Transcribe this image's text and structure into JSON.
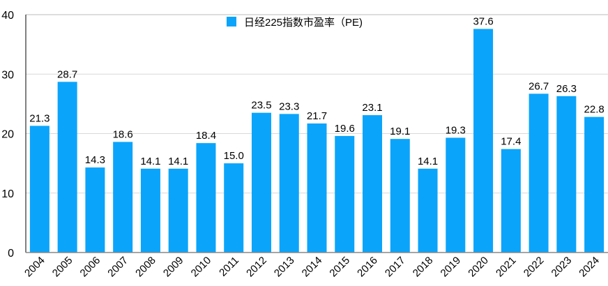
{
  "chart_data": {
    "type": "bar",
    "title": "",
    "xlabel": "",
    "ylabel": "",
    "ylim": [
      0,
      40
    ],
    "yticks": [
      0,
      10,
      20,
      30,
      40
    ],
    "grid": true,
    "legend_position": "top-center",
    "bar_color": "#0ba4fb",
    "series": [
      {
        "name": "日经225指数市盈率（PE)",
        "values": [
          21.3,
          28.7,
          14.3,
          18.6,
          14.1,
          14.1,
          18.4,
          15.0,
          23.5,
          23.3,
          21.7,
          19.6,
          23.1,
          19.1,
          14.1,
          19.3,
          37.6,
          17.4,
          26.7,
          26.3,
          22.8
        ]
      }
    ],
    "categories": [
      "2004",
      "2005",
      "2006",
      "2007",
      "2008",
      "2009",
      "2010",
      "2011",
      "2012",
      "2013",
      "2014",
      "2015",
      "2016",
      "2017",
      "2018",
      "2019",
      "2020",
      "2021",
      "2022",
      "2023",
      "2024"
    ],
    "data_labels": [
      "21.3",
      "28.7",
      "14.3",
      "18.6",
      "14.1",
      "14.1",
      "18.4",
      "15.0",
      "23.5",
      "23.3",
      "21.7",
      "19.6",
      "23.1",
      "19.1",
      "14.1",
      "19.3",
      "37.6",
      "17.4",
      "26.7",
      "26.3",
      "22.8"
    ]
  }
}
